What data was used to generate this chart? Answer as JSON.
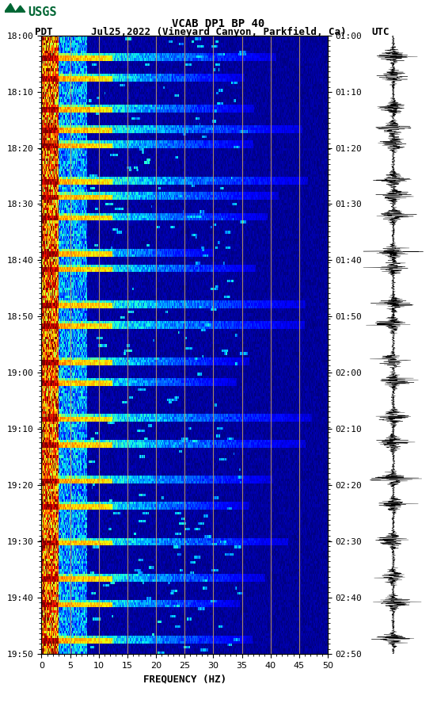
{
  "title_line1": "VCAB DP1 BP 40",
  "title_line2_pdt": "PDT",
  "title_line2_mid": "Jul25,2022 (Vineyard Canyon, Parkfield, Ca)",
  "title_line2_utc": "UTC",
  "xlabel": "FREQUENCY (HZ)",
  "freq_min": 0,
  "freq_max": 50,
  "freq_ticks": [
    0,
    5,
    10,
    15,
    20,
    25,
    30,
    35,
    40,
    45,
    50
  ],
  "left_time_labels": [
    "18:00",
    "18:10",
    "18:20",
    "18:30",
    "18:40",
    "18:50",
    "19:00",
    "19:10",
    "19:20",
    "19:30",
    "19:40",
    "19:50"
  ],
  "right_time_labels": [
    "01:00",
    "01:10",
    "01:20",
    "01:30",
    "01:40",
    "01:50",
    "02:00",
    "02:10",
    "02:20",
    "02:30",
    "02:40",
    "02:50"
  ],
  "background_color": "#ffffff",
  "vline_color": "#C8A060",
  "colormap": "jet",
  "figure_width": 5.52,
  "figure_height": 8.92,
  "dpi": 100,
  "usgs_logo_color": "#006633"
}
